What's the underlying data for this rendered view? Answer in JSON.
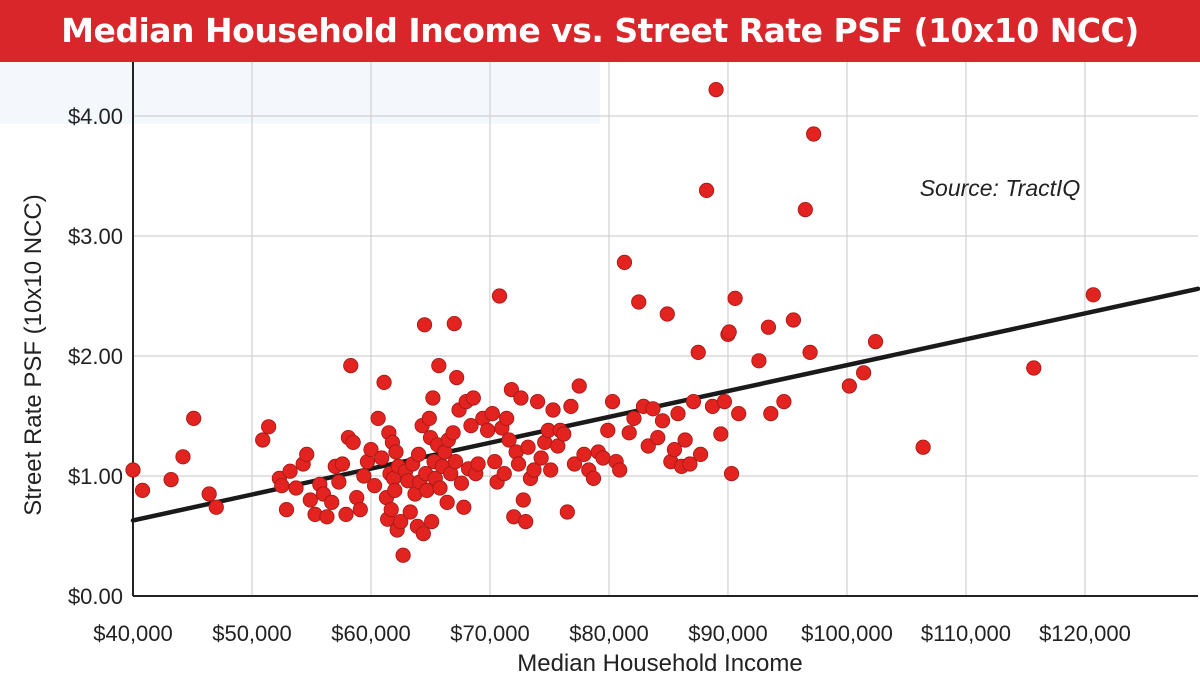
{
  "chart_data": {
    "type": "scatter",
    "title": "Median Household Income vs. Street Rate PSF (10x10 NCC)",
    "xlabel": "Median Household Income",
    "ylabel": "Street Rate PSF (10x10 NCC)",
    "annotation": "Source: TractIQ",
    "xlim": [
      40000,
      129500
    ],
    "ylim": [
      0,
      4.45
    ],
    "x_ticks": [
      40000,
      50000,
      60000,
      70000,
      80000,
      90000,
      100000,
      110000,
      120000
    ],
    "x_tick_labels": [
      "$40,000",
      "$50,000",
      "$60,000",
      "$70,000",
      "$80,000",
      "$90,000",
      "$100,000",
      "$110,000",
      "$120,000"
    ],
    "y_ticks": [
      0,
      1,
      2,
      3,
      4
    ],
    "y_tick_labels": [
      "$0.00",
      "$1.00",
      "$2.00",
      "$3.00",
      "$4.00"
    ],
    "grid": true,
    "colors": {
      "banner": "#d9262a",
      "points": "#e2231f",
      "trendline": "#1a1a1a",
      "grid": "#d0d0d0"
    },
    "trendline": {
      "x": [
        40000,
        129500
      ],
      "y": [
        0.63,
        2.56
      ]
    },
    "series": [
      {
        "points": [
          [
            40000,
            1.05
          ],
          [
            40800,
            0.88
          ],
          [
            43200,
            0.97
          ],
          [
            44200,
            1.16
          ],
          [
            45100,
            1.48
          ],
          [
            46400,
            0.85
          ],
          [
            47000,
            0.74
          ],
          [
            50900,
            1.3
          ],
          [
            51400,
            1.41
          ],
          [
            52300,
            0.98
          ],
          [
            52500,
            0.92
          ],
          [
            52900,
            0.72
          ],
          [
            53200,
            1.04
          ],
          [
            53700,
            0.9
          ],
          [
            54300,
            1.1
          ],
          [
            54600,
            1.18
          ],
          [
            54900,
            0.8
          ],
          [
            55300,
            0.68
          ],
          [
            55700,
            0.93
          ],
          [
            56000,
            0.85
          ],
          [
            56300,
            0.66
          ],
          [
            56700,
            0.78
          ],
          [
            57000,
            1.08
          ],
          [
            57300,
            0.95
          ],
          [
            57600,
            1.1
          ],
          [
            57900,
            0.68
          ],
          [
            58100,
            1.32
          ],
          [
            58300,
            1.92
          ],
          [
            58500,
            1.28
          ],
          [
            58800,
            0.82
          ],
          [
            59100,
            0.72
          ],
          [
            59400,
            1.0
          ],
          [
            59700,
            1.12
          ],
          [
            60000,
            1.22
          ],
          [
            60300,
            0.92
          ],
          [
            60600,
            1.48
          ],
          [
            60900,
            1.15
          ],
          [
            61100,
            1.78
          ],
          [
            61300,
            0.82
          ],
          [
            61400,
            0.64
          ],
          [
            61500,
            1.36
          ],
          [
            61600,
            1.02
          ],
          [
            61700,
            0.72
          ],
          [
            61800,
            1.28
          ],
          [
            61900,
            0.98
          ],
          [
            62000,
            0.88
          ],
          [
            62100,
            1.2
          ],
          [
            62200,
            0.55
          ],
          [
            62300,
            1.08
          ],
          [
            62500,
            0.62
          ],
          [
            62700,
            0.34
          ],
          [
            62900,
            1.04
          ],
          [
            63100,
            0.96
          ],
          [
            63300,
            0.7
          ],
          [
            63500,
            1.1
          ],
          [
            63700,
            0.85
          ],
          [
            63900,
            0.58
          ],
          [
            64000,
            1.18
          ],
          [
            64100,
            0.95
          ],
          [
            64300,
            1.42
          ],
          [
            64400,
            0.52
          ],
          [
            64500,
            2.26
          ],
          [
            64600,
            1.02
          ],
          [
            64700,
            0.88
          ],
          [
            64900,
            1.48
          ],
          [
            65000,
            1.32
          ],
          [
            65100,
            0.62
          ],
          [
            65200,
            1.65
          ],
          [
            65300,
            1.12
          ],
          [
            65400,
            0.98
          ],
          [
            65600,
            1.26
          ],
          [
            65700,
            1.92
          ],
          [
            65800,
            0.9
          ],
          [
            66000,
            1.08
          ],
          [
            66200,
            1.2
          ],
          [
            66400,
            0.78
          ],
          [
            66500,
            1.3
          ],
          [
            66700,
            1.02
          ],
          [
            66900,
            1.36
          ],
          [
            67000,
            2.27
          ],
          [
            67100,
            1.12
          ],
          [
            67200,
            1.82
          ],
          [
            67400,
            1.55
          ],
          [
            67600,
            0.94
          ],
          [
            67800,
            0.74
          ],
          [
            68000,
            1.62
          ],
          [
            68200,
            1.06
          ],
          [
            68400,
            1.42
          ],
          [
            68600,
            1.65
          ],
          [
            68800,
            1.02
          ],
          [
            69000,
            1.1
          ],
          [
            69400,
            1.48
          ],
          [
            69800,
            1.38
          ],
          [
            70200,
            1.52
          ],
          [
            70400,
            1.12
          ],
          [
            70600,
            0.95
          ],
          [
            70800,
            2.5
          ],
          [
            71000,
            1.4
          ],
          [
            71200,
            1.02
          ],
          [
            71400,
            1.48
          ],
          [
            71600,
            1.3
          ],
          [
            71800,
            1.72
          ],
          [
            72000,
            0.66
          ],
          [
            72200,
            1.2
          ],
          [
            72400,
            1.1
          ],
          [
            72600,
            1.65
          ],
          [
            72800,
            0.8
          ],
          [
            73000,
            0.62
          ],
          [
            73200,
            1.24
          ],
          [
            73400,
            0.98
          ],
          [
            73700,
            1.05
          ],
          [
            74000,
            1.62
          ],
          [
            74300,
            1.15
          ],
          [
            74600,
            1.28
          ],
          [
            74900,
            1.38
          ],
          [
            75100,
            1.05
          ],
          [
            75300,
            1.55
          ],
          [
            75700,
            1.25
          ],
          [
            75900,
            1.38
          ],
          [
            76200,
            1.35
          ],
          [
            76500,
            0.7
          ],
          [
            76800,
            1.58
          ],
          [
            77100,
            1.1
          ],
          [
            77500,
            1.75
          ],
          [
            77900,
            1.18
          ],
          [
            78300,
            1.05
          ],
          [
            78700,
            0.98
          ],
          [
            79100,
            1.2
          ],
          [
            79500,
            1.15
          ],
          [
            79900,
            1.38
          ],
          [
            80300,
            1.62
          ],
          [
            80600,
            1.12
          ],
          [
            80900,
            1.05
          ],
          [
            81300,
            2.78
          ],
          [
            81700,
            1.36
          ],
          [
            82100,
            1.48
          ],
          [
            82500,
            2.45
          ],
          [
            82900,
            1.58
          ],
          [
            83300,
            1.25
          ],
          [
            83700,
            1.56
          ],
          [
            84100,
            1.32
          ],
          [
            84500,
            1.46
          ],
          [
            84900,
            2.35
          ],
          [
            85200,
            1.12
          ],
          [
            85500,
            1.22
          ],
          [
            85800,
            1.52
          ],
          [
            86100,
            1.08
          ],
          [
            86400,
            1.3
          ],
          [
            86800,
            1.1
          ],
          [
            87100,
            1.62
          ],
          [
            87500,
            2.03
          ],
          [
            87700,
            1.18
          ],
          [
            88200,
            3.38
          ],
          [
            88700,
            1.58
          ],
          [
            89000,
            4.22
          ],
          [
            89400,
            1.35
          ],
          [
            89700,
            1.62
          ],
          [
            90000,
            2.18
          ],
          [
            90100,
            2.2
          ],
          [
            90300,
            1.02
          ],
          [
            90600,
            2.48
          ],
          [
            90900,
            1.52
          ],
          [
            92600,
            1.96
          ],
          [
            93400,
            2.24
          ],
          [
            93600,
            1.52
          ],
          [
            94700,
            1.62
          ],
          [
            95500,
            2.3
          ],
          [
            96500,
            3.22
          ],
          [
            96900,
            2.03
          ],
          [
            97200,
            3.85
          ],
          [
            100200,
            1.75
          ],
          [
            101400,
            1.86
          ],
          [
            102400,
            2.12
          ],
          [
            106400,
            1.24
          ],
          [
            115700,
            1.9
          ],
          [
            120700,
            2.51
          ]
        ]
      }
    ]
  }
}
